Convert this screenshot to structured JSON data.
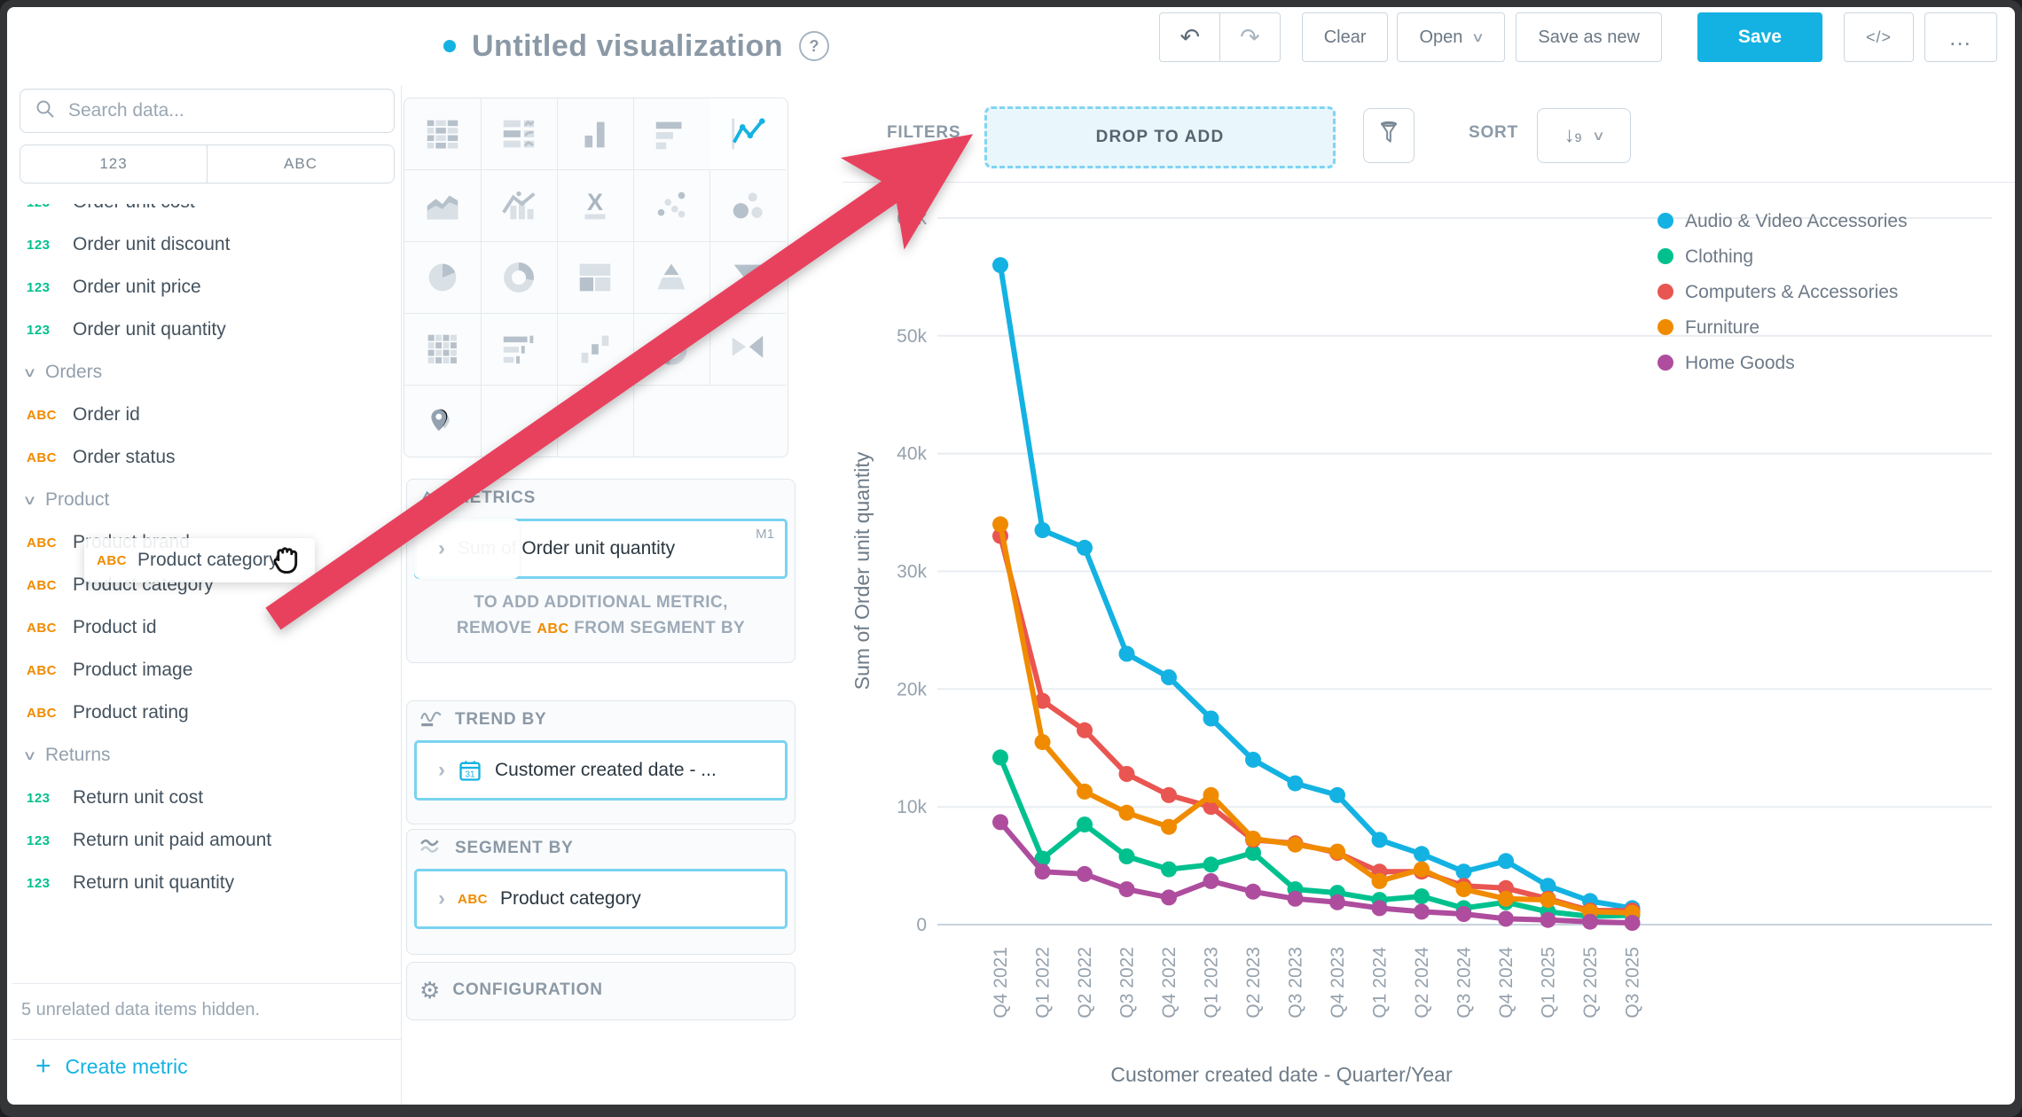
{
  "window": {
    "title": "Untitled visualization",
    "help": "?"
  },
  "toolbar": {
    "clear": "Clear",
    "open": "Open",
    "save_as_new": "Save as new",
    "save": "Save",
    "code": "</>",
    "more": "…"
  },
  "catalog": {
    "search_placeholder": "Search data...",
    "tabs": [
      "123",
      "ABC"
    ],
    "badge_numeric": "123",
    "badge_attribute": "ABC",
    "items": [
      {
        "type": "numeric",
        "label": "Order unit cost",
        "clipped": true
      },
      {
        "type": "numeric",
        "label": "Order unit discount"
      },
      {
        "type": "numeric",
        "label": "Order unit price"
      },
      {
        "type": "numeric",
        "label": "Order unit quantity"
      },
      {
        "type": "section",
        "label": "Orders"
      },
      {
        "type": "attribute",
        "label": "Order id"
      },
      {
        "type": "attribute",
        "label": "Order status"
      },
      {
        "type": "section",
        "label": "Product"
      },
      {
        "type": "attribute",
        "label": "Product brand"
      },
      {
        "type": "attribute",
        "label": "Product category"
      },
      {
        "type": "attribute",
        "label": "Product id"
      },
      {
        "type": "attribute",
        "label": "Product image"
      },
      {
        "type": "attribute",
        "label": "Product rating"
      },
      {
        "type": "section",
        "label": "Returns"
      },
      {
        "type": "numeric",
        "label": "Return unit cost"
      },
      {
        "type": "numeric",
        "label": "Return unit paid amount"
      },
      {
        "type": "numeric",
        "label": "Return unit quantity"
      }
    ],
    "hidden_note": "5 unrelated data items hidden.",
    "create_metric": "Create metric"
  },
  "vis_picker": {
    "selected": "line-chart",
    "types": [
      "table",
      "repeater",
      "column-chart",
      "bar-chart",
      "line-chart",
      "area-chart",
      "combo-chart",
      "headline",
      "scatter-plot",
      "bubble-chart",
      "pie-chart",
      "donut-chart",
      "treemap",
      "pyramid-chart",
      "funnel-chart",
      "heatmap",
      "bullet-chart",
      "waterfall-chart",
      "dependency-wheel",
      "sankey",
      "geo-pushpin",
      "empty",
      "empty"
    ]
  },
  "buckets": {
    "metrics": {
      "title": "METRICS",
      "item": {
        "label": "Sum of Order unit quantity",
        "badge": "M1"
      },
      "hint_line1": "TO ADD ADDITIONAL METRIC,",
      "hint_remove": "REMOVE",
      "hint_badge": "ABC",
      "hint_rest": "FROM SEGMENT BY"
    },
    "trend_by": {
      "title": "TREND BY",
      "item": {
        "label": "Customer created date - ..."
      }
    },
    "segment_by": {
      "title": "SEGMENT BY",
      "item": {
        "badge": "ABC",
        "label": "Product category"
      }
    },
    "configuration": {
      "title": "CONFIGURATION"
    }
  },
  "filters_bar": {
    "label": "FILTERS",
    "drop_zone": "DROP TO ADD",
    "sort_label": "SORT",
    "sort_icon_digit": "9"
  },
  "drag": {
    "badge": "ABC",
    "label": "Product category"
  },
  "colors": {
    "accent": "#14b2e2",
    "arrow": "#e8415e",
    "numeric_badge": "#00c18e",
    "attribute_badge": "#f08b00"
  },
  "chart_data": {
    "type": "line",
    "title": "",
    "xlabel": "Customer created date - Quarter/Year",
    "ylabel": "Sum of Order unit quantity",
    "ylim": [
      0,
      60000
    ],
    "grid": true,
    "legend_position": "right",
    "yticks": [
      {
        "label": "0",
        "value": 0
      },
      {
        "label": "10k",
        "value": 10000
      },
      {
        "label": "20k",
        "value": 20000
      },
      {
        "label": "30k",
        "value": 30000
      },
      {
        "label": "40k",
        "value": 40000
      },
      {
        "label": "50k",
        "value": 50000
      },
      {
        "label": "60k",
        "value": 60000
      }
    ],
    "categories": [
      "Q4 2021",
      "Q1 2022",
      "Q2 2022",
      "Q3 2022",
      "Q4 2022",
      "Q1 2023",
      "Q2 2023",
      "Q3 2023",
      "Q4 2023",
      "Q1 2024",
      "Q2 2024",
      "Q3 2024",
      "Q4 2024",
      "Q1 2025",
      "Q2 2025",
      "Q3 2025"
    ],
    "series": [
      {
        "name": "Audio & Video Accessories",
        "color": "#14b2e2",
        "values": [
          56000,
          33500,
          32000,
          23000,
          21000,
          17500,
          14000,
          12000,
          11000,
          7200,
          6000,
          4500,
          5400,
          3300,
          2000,
          1400
        ]
      },
      {
        "name": "Clothing",
        "color": "#00c18e",
        "values": [
          14200,
          5600,
          8500,
          5800,
          4700,
          5100,
          6100,
          3000,
          2700,
          2100,
          2400,
          1400,
          1900,
          1100,
          700,
          800
        ]
      },
      {
        "name": "Computers & Accessories",
        "color": "#e95550",
        "values": [
          33000,
          19000,
          16500,
          12800,
          11000,
          10000,
          7200,
          6900,
          6100,
          4500,
          4500,
          3300,
          3100,
          2200,
          1200,
          1200
        ]
      },
      {
        "name": "Furniture",
        "color": "#f08b00",
        "values": [
          34000,
          15500,
          11300,
          9500,
          8300,
          11000,
          7300,
          6800,
          6200,
          3700,
          4700,
          3000,
          2200,
          2100,
          1100,
          1000
        ]
      },
      {
        "name": "Home Goods",
        "color": "#ae4d9e",
        "values": [
          8700,
          4500,
          4300,
          3000,
          2300,
          3700,
          2800,
          2200,
          1900,
          1400,
          1100,
          900,
          500,
          400,
          250,
          150
        ]
      }
    ]
  }
}
